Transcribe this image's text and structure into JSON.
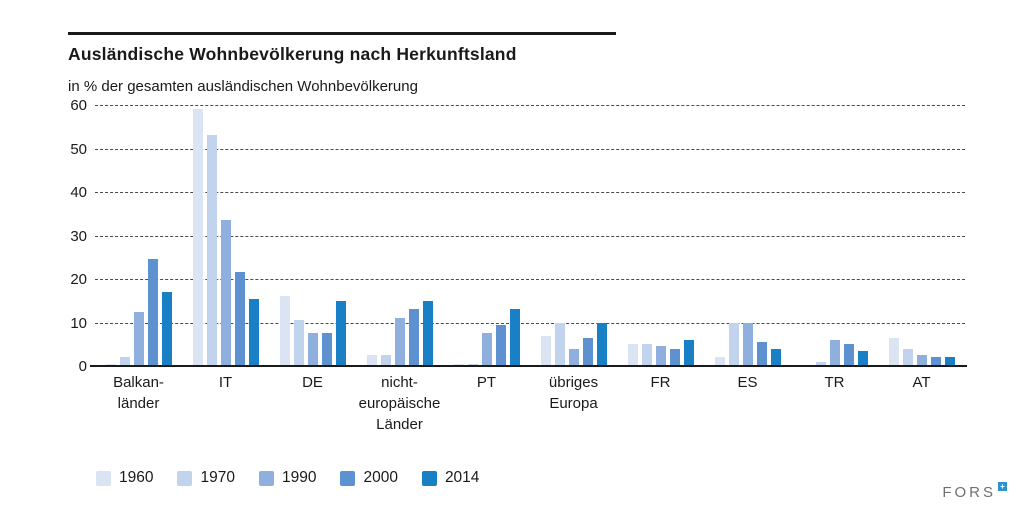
{
  "title": "Ausländische Wohnbevölkerung nach Herkunftsland",
  "subtitle": "in % der gesamten ausländischen Wohnbevölkerung",
  "footer": {
    "logo_text": "FORS",
    "logo_mark": "+"
  },
  "colors": {
    "series": [
      "#dae4f3",
      "#c2d3ee",
      "#8fb0df",
      "#5e91cf",
      "#1980c6"
    ],
    "axis": "#1a1a1a",
    "grid": "#4a4a4a"
  },
  "chart_data": {
    "type": "bar",
    "categories": [
      "Balkanländer",
      "IT",
      "DE",
      "nicht-europäische Länder",
      "PT",
      "übriges Europa",
      "FR",
      "ES",
      "TR",
      "AT"
    ],
    "category_label_lines": [
      [
        "Balkan-",
        "länder"
      ],
      [
        "IT"
      ],
      [
        "DE"
      ],
      [
        "nicht-",
        "europäische",
        "Länder"
      ],
      [
        "PT"
      ],
      [
        "übriges",
        "Europa"
      ],
      [
        "FR"
      ],
      [
        "ES"
      ],
      [
        "TR"
      ],
      [
        "AT"
      ]
    ],
    "series": [
      {
        "name": "1960",
        "values": [
          0.5,
          59,
          16,
          2.5,
          0.5,
          7,
          5,
          2,
          0.2,
          6.5
        ]
      },
      {
        "name": "1970",
        "values": [
          2,
          53,
          10.5,
          2.5,
          0.5,
          10,
          5,
          10,
          1,
          4
        ]
      },
      {
        "name": "1990",
        "values": [
          12.5,
          33.5,
          7.5,
          11,
          7.5,
          4,
          4.5,
          10,
          6,
          2.5
        ]
      },
      {
        "name": "2000",
        "values": [
          24.5,
          21.5,
          7.5,
          13,
          9.5,
          6.5,
          4,
          5.5,
          5,
          2
        ]
      },
      {
        "name": "2014",
        "values": [
          17,
          15.5,
          15,
          15,
          13,
          10,
          6,
          4,
          3.5,
          2
        ]
      }
    ],
    "title": "Ausländische Wohnbevölkerung nach Herkunftsland",
    "xlabel": "",
    "ylabel": "in % der gesamten ausländischen Wohnbevölkerung",
    "ylim": [
      0,
      60
    ],
    "yticks": [
      0,
      10,
      20,
      30,
      40,
      50,
      60
    ],
    "grid": "horizontal-dashed",
    "legend_position": "bottom-left"
  }
}
